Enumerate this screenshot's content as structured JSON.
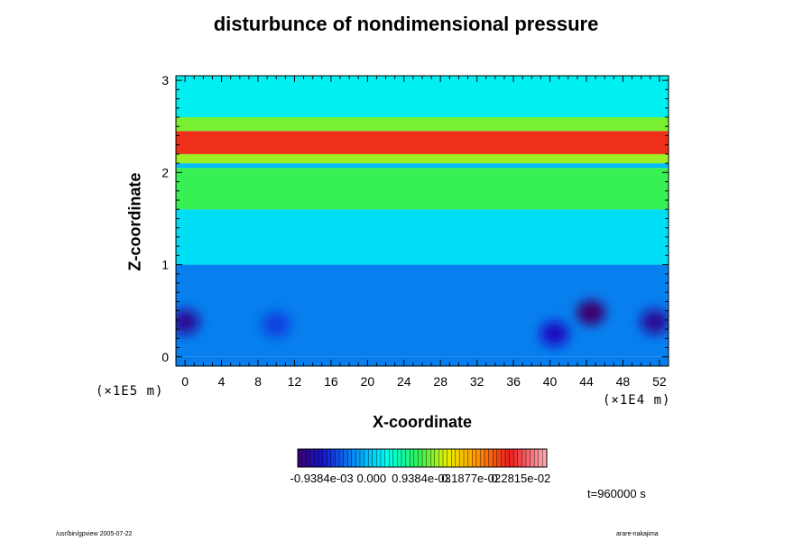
{
  "chart_data": {
    "type": "heatmap",
    "title": "disturbunce of nondimensional pressure",
    "xlabel": "X-coordinate",
    "ylabel": "Z-coordinate",
    "x_unit": "(×1E4 m)",
    "y_unit": "(×1E5 m)",
    "xlim": [
      -1,
      53
    ],
    "ylim": [
      -0.1,
      3.05
    ],
    "x_ticks": [
      "0",
      "4",
      "8",
      "12",
      "16",
      "20",
      "24",
      "28",
      "32",
      "36",
      "40",
      "44",
      "48",
      "52"
    ],
    "y_ticks": [
      "0",
      "1",
      "2",
      "3"
    ],
    "bands": [
      {
        "z_min": 0.0,
        "z_max": 1.0,
        "level": -0.0004
      },
      {
        "z_min": 1.0,
        "z_max": 1.6,
        "level": 0.0001
      },
      {
        "z_min": 1.6,
        "z_max": 2.05,
        "level": 0.0009
      },
      {
        "z_min": 2.05,
        "z_max": 2.1,
        "level": -0.0001
      },
      {
        "z_min": 2.1,
        "z_max": 2.2,
        "level": 0.0012
      },
      {
        "z_min": 2.2,
        "z_max": 2.45,
        "level": 0.0025
      },
      {
        "z_min": 2.45,
        "z_max": 2.6,
        "level": 0.0011
      },
      {
        "z_min": 2.6,
        "z_max": 3.05,
        "level": 0.0002
      }
    ],
    "anomalies": [
      {
        "x": 0,
        "z": 0.38,
        "level": -0.0012
      },
      {
        "x": 10,
        "z": 0.35,
        "level": -0.0007
      },
      {
        "x": 40.5,
        "z": 0.25,
        "level": -0.001
      },
      {
        "x": 44.5,
        "z": 0.48,
        "level": -0.0015
      },
      {
        "x": 51.5,
        "z": 0.38,
        "level": -0.0012
      }
    ],
    "colorbar": {
      "min": -0.0014,
      "max": 0.0033,
      "labels": [
        "-0.9384e-03",
        "0.000",
        "0.9384e-03",
        "0.1877e-02",
        "0.2815e-02"
      ]
    }
  },
  "time_label": "t=960000 s",
  "footer": {
    "left": "/usr/bin/gpview 2005-07-22",
    "right": "arare-nakajima"
  }
}
